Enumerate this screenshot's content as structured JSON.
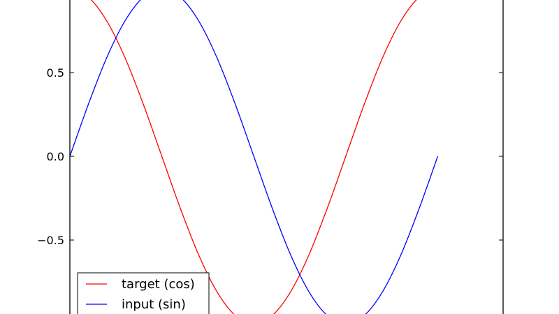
{
  "chart_data": {
    "type": "line",
    "xlim": [
      0,
      7.4
    ],
    "ylim": [
      -0.95,
      0.95
    ],
    "yticks": [
      {
        "value": 0.5,
        "label": "0.5"
      },
      {
        "value": 0.0,
        "label": "0.0"
      },
      {
        "value": -0.5,
        "label": "−0.5"
      }
    ],
    "x": [
      0.0,
      0.3142,
      0.6283,
      0.9425,
      1.2566,
      1.5708,
      1.885,
      2.1991,
      2.5133,
      2.8274,
      3.1416,
      3.4558,
      3.7699,
      4.0841,
      4.3982,
      4.7124,
      5.0265,
      5.3407,
      5.6549,
      5.969,
      6.2832
    ],
    "series": [
      {
        "name": "target (cos)",
        "color": "#ff0000",
        "values": [
          1.0,
          0.951,
          0.809,
          0.588,
          0.309,
          0.0,
          -0.309,
          -0.588,
          -0.809,
          -0.951,
          -1.0,
          -0.951,
          -0.809,
          -0.588,
          -0.309,
          0.0,
          0.309,
          0.588,
          0.809,
          0.951,
          1.0
        ]
      },
      {
        "name": "input (sin)",
        "color": "#0000ff",
        "values": [
          0.0,
          0.309,
          0.588,
          0.809,
          0.951,
          1.0,
          0.951,
          0.809,
          0.588,
          0.309,
          0.0,
          -0.309,
          -0.588,
          -0.809,
          -0.951,
          -1.0,
          -0.951,
          -0.809,
          -0.588,
          -0.309,
          0.0
        ]
      }
    ],
    "legend_position": "bottom-left",
    "grid": false
  }
}
